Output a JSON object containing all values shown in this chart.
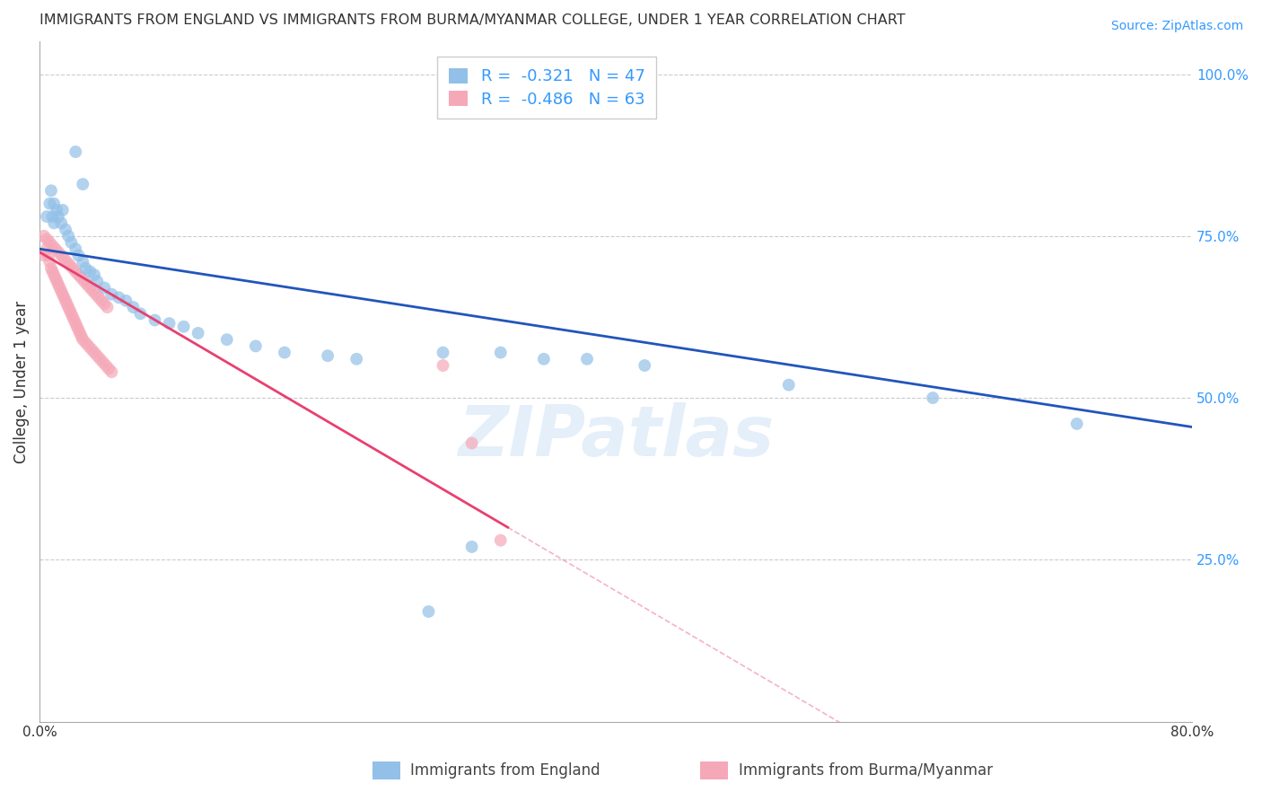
{
  "title": "IMMIGRANTS FROM ENGLAND VS IMMIGRANTS FROM BURMA/MYANMAR COLLEGE, UNDER 1 YEAR CORRELATION CHART",
  "source": "Source: ZipAtlas.com",
  "ylabel": "College, Under 1 year",
  "legend_label_1": "Immigrants from England",
  "legend_label_2": "Immigrants from Burma/Myanmar",
  "R1": -0.321,
  "N1": 47,
  "R2": -0.486,
  "N2": 63,
  "color_england": "#92C0E8",
  "color_burma": "#F5A8B8",
  "color_england_line": "#2255BB",
  "color_burma_line": "#E84070",
  "background": "#FFFFFF",
  "grid_color": "#CCCCCC",
  "xlim": [
    0.0,
    0.8
  ],
  "ylim": [
    0.0,
    1.05
  ],
  "xticks": [
    0.0,
    0.1,
    0.2,
    0.3,
    0.4,
    0.5,
    0.6,
    0.7,
    0.8
  ],
  "yticks_right": [
    0.25,
    0.5,
    0.75,
    1.0
  ],
  "ytick_right_labels": [
    "25.0%",
    "50.0%",
    "75.0%",
    "100.0%"
  ],
  "england_x": [
    0.005,
    0.007,
    0.008,
    0.009,
    0.01,
    0.01,
    0.012,
    0.013,
    0.015,
    0.016,
    0.018,
    0.02,
    0.022,
    0.025,
    0.027,
    0.03,
    0.032,
    0.035,
    0.038,
    0.04,
    0.045,
    0.05,
    0.055,
    0.06,
    0.065,
    0.07,
    0.08,
    0.09,
    0.1,
    0.11,
    0.13,
    0.15,
    0.17,
    0.2,
    0.22,
    0.025,
    0.03,
    0.28,
    0.32,
    0.35,
    0.38,
    0.42,
    0.52,
    0.62,
    0.72,
    0.3,
    0.27
  ],
  "england_y": [
    0.78,
    0.8,
    0.82,
    0.78,
    0.77,
    0.8,
    0.79,
    0.78,
    0.77,
    0.79,
    0.76,
    0.75,
    0.74,
    0.73,
    0.72,
    0.71,
    0.7,
    0.695,
    0.69,
    0.68,
    0.67,
    0.66,
    0.655,
    0.65,
    0.64,
    0.63,
    0.62,
    0.615,
    0.61,
    0.6,
    0.59,
    0.58,
    0.57,
    0.565,
    0.56,
    0.88,
    0.83,
    0.57,
    0.57,
    0.56,
    0.56,
    0.55,
    0.52,
    0.5,
    0.46,
    0.27,
    0.17
  ],
  "burma_x": [
    0.003,
    0.005,
    0.006,
    0.007,
    0.008,
    0.009,
    0.01,
    0.011,
    0.012,
    0.013,
    0.014,
    0.015,
    0.016,
    0.017,
    0.018,
    0.019,
    0.02,
    0.021,
    0.022,
    0.023,
    0.024,
    0.025,
    0.026,
    0.027,
    0.028,
    0.029,
    0.03,
    0.032,
    0.034,
    0.036,
    0.038,
    0.04,
    0.042,
    0.044,
    0.046,
    0.048,
    0.05,
    0.003,
    0.005,
    0.007,
    0.009,
    0.011,
    0.013,
    0.015,
    0.017,
    0.019,
    0.021,
    0.023,
    0.025,
    0.027,
    0.029,
    0.031,
    0.033,
    0.035,
    0.037,
    0.039,
    0.041,
    0.043,
    0.045,
    0.047,
    0.28,
    0.3,
    0.32
  ],
  "burma_y": [
    0.72,
    0.73,
    0.72,
    0.71,
    0.7,
    0.695,
    0.69,
    0.685,
    0.68,
    0.675,
    0.67,
    0.665,
    0.66,
    0.655,
    0.65,
    0.645,
    0.64,
    0.635,
    0.63,
    0.625,
    0.62,
    0.615,
    0.61,
    0.605,
    0.6,
    0.595,
    0.59,
    0.585,
    0.58,
    0.575,
    0.57,
    0.565,
    0.56,
    0.555,
    0.55,
    0.545,
    0.54,
    0.75,
    0.745,
    0.74,
    0.735,
    0.73,
    0.725,
    0.72,
    0.715,
    0.71,
    0.705,
    0.7,
    0.695,
    0.69,
    0.685,
    0.68,
    0.675,
    0.67,
    0.665,
    0.66,
    0.655,
    0.65,
    0.645,
    0.64,
    0.55,
    0.43,
    0.28
  ]
}
